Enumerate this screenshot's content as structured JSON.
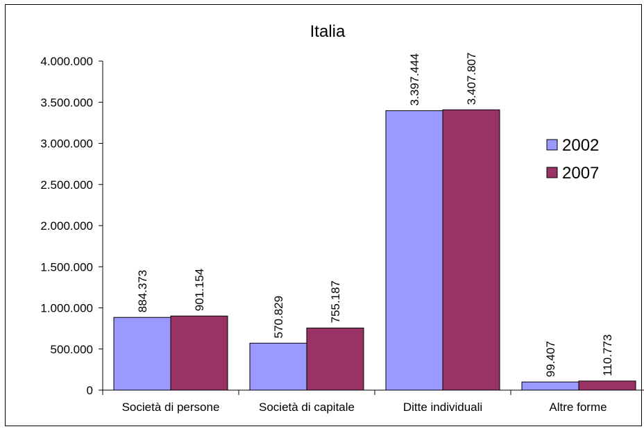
{
  "chart_data": {
    "type": "bar",
    "title": "Italia",
    "xlabel": "",
    "ylabel": "",
    "categories": [
      "Società di persone",
      "Società di capitale",
      "Ditte individuali",
      "Altre forme"
    ],
    "series": [
      {
        "name": "2002",
        "color": "#9999ff",
        "values": [
          884373,
          570829,
          3397444,
          99407
        ],
        "labels": [
          "884.373",
          "570.829",
          "3.397.444",
          "99.407"
        ]
      },
      {
        "name": "2007",
        "color": "#993366",
        "values": [
          901154,
          755187,
          3407807,
          110773
        ],
        "labels": [
          "901.154",
          "755.187",
          "3.407.807",
          "110.773"
        ]
      }
    ],
    "ylim": [
      0,
      4000000
    ],
    "yticks": [
      0,
      500000,
      1000000,
      1500000,
      2000000,
      2500000,
      3000000,
      3500000,
      4000000
    ],
    "ytick_labels": [
      "0",
      "500.000",
      "1.000.000",
      "1.500.000",
      "2.000.000",
      "2.500.000",
      "3.000.000",
      "3.500.000",
      "4.000.000"
    ],
    "grid": false,
    "legend_position": "right",
    "data_labels": "rotated-vertical"
  }
}
